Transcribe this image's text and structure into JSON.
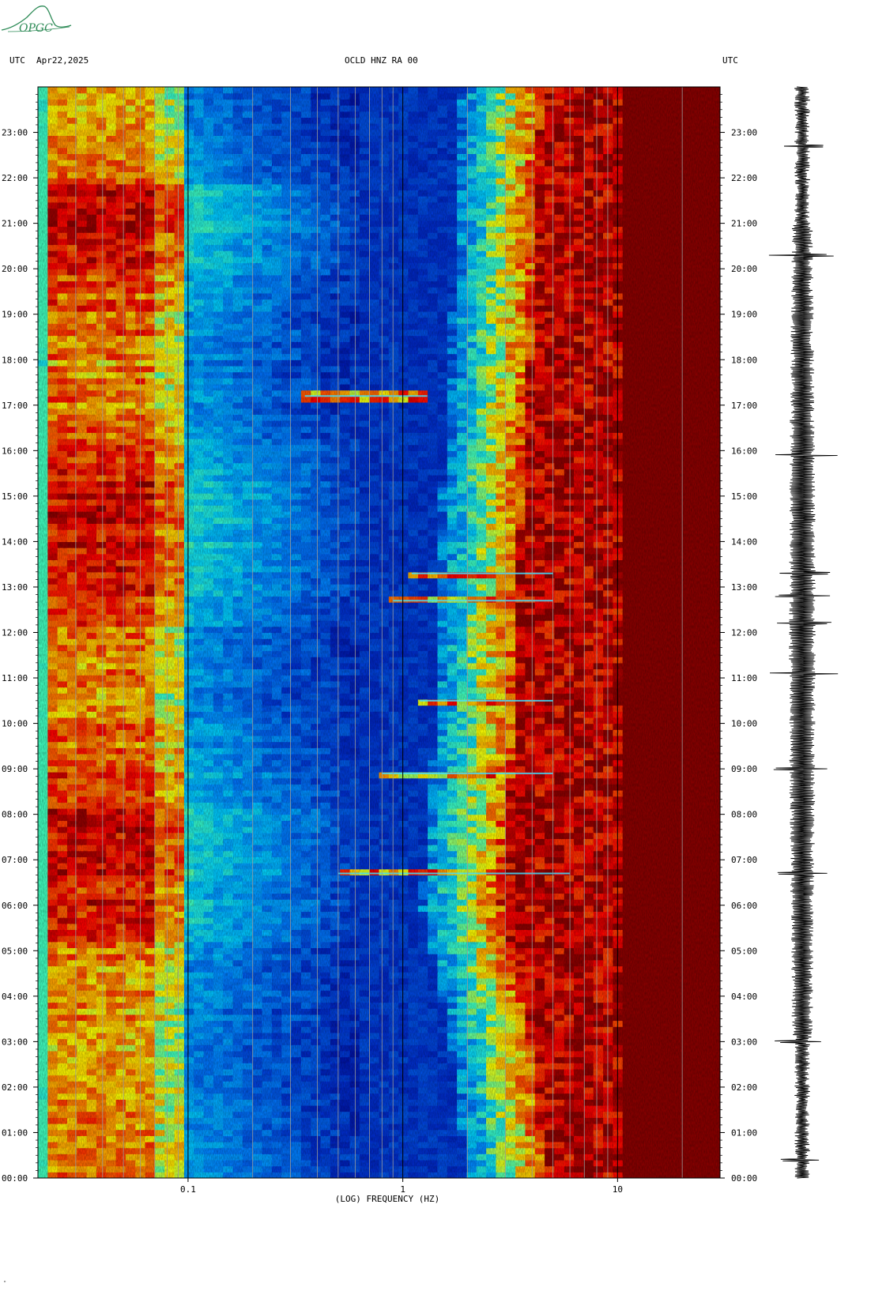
{
  "header": {
    "left_tz": "UTC",
    "date": "Apr22,2025",
    "station": "OCLD HNZ RA 00",
    "right_tz": "UTC"
  },
  "logo": {
    "text": "OPGC",
    "icon": "mountain-logo-icon",
    "color": "#2e8b57"
  },
  "footnote": "\"",
  "chart_data": {
    "type": "heatmap",
    "title": "OCLD HNZ RA 00",
    "xlabel": "(LOG) FREQUENCY (HZ)",
    "ylabel": "UTC",
    "x_scale": "log",
    "xlim": [
      0.02,
      30
    ],
    "x_ticks": [
      {
        "value": 0.1,
        "label": "0.1"
      },
      {
        "value": 1,
        "label": "1"
      },
      {
        "value": 10,
        "label": "10"
      }
    ],
    "ylim": [
      0,
      24
    ],
    "y_ticks": [
      {
        "value": 0,
        "label": "00:00"
      },
      {
        "value": 1,
        "label": "01:00"
      },
      {
        "value": 2,
        "label": "02:00"
      },
      {
        "value": 3,
        "label": "03:00"
      },
      {
        "value": 4,
        "label": "04:00"
      },
      {
        "value": 5,
        "label": "05:00"
      },
      {
        "value": 6,
        "label": "06:00"
      },
      {
        "value": 7,
        "label": "07:00"
      },
      {
        "value": 8,
        "label": "08:00"
      },
      {
        "value": 9,
        "label": "09:00"
      },
      {
        "value": 10,
        "label": "10:00"
      },
      {
        "value": 11,
        "label": "11:00"
      },
      {
        "value": 12,
        "label": "12:00"
      },
      {
        "value": 13,
        "label": "13:00"
      },
      {
        "value": 14,
        "label": "14:00"
      },
      {
        "value": 15,
        "label": "15:00"
      },
      {
        "value": 16,
        "label": "16:00"
      },
      {
        "value": 17,
        "label": "17:00"
      },
      {
        "value": 18,
        "label": "18:00"
      },
      {
        "value": 19,
        "label": "19:00"
      },
      {
        "value": 20,
        "label": "20:00"
      },
      {
        "value": 21,
        "label": "21:00"
      },
      {
        "value": 22,
        "label": "22:00"
      },
      {
        "value": 23,
        "label": "23:00"
      }
    ],
    "colormap": [
      "#00008b",
      "#0030d0",
      "#0080ff",
      "#00d0ff",
      "#40ffc0",
      "#ffff00",
      "#ff8000",
      "#ff0000",
      "#8b0000"
    ],
    "noise_edge_hz": [
      {
        "utc_hour": 0,
        "freq_hz": 2.6
      },
      {
        "utc_hour": 3,
        "freq_hz": 2.2
      },
      {
        "utc_hour": 6,
        "freq_hz": 1.6
      },
      {
        "utc_hour": 9,
        "freq_hz": 1.8
      },
      {
        "utc_hour": 12,
        "freq_hz": 1.9
      },
      {
        "utc_hour": 15,
        "freq_hz": 2.0
      },
      {
        "utc_hour": 18,
        "freq_hz": 2.2
      },
      {
        "utc_hour": 21,
        "freq_hz": 2.3
      },
      {
        "utc_hour": 24,
        "freq_hz": 2.5
      }
    ],
    "saturation_hz": 11,
    "events": [
      {
        "utc_hour": 6.7,
        "freq_min_hz": 0.5,
        "freq_max_hz": 6
      },
      {
        "utc_hour": 8.9,
        "freq_min_hz": 0.8,
        "freq_max_hz": 5
      },
      {
        "utc_hour": 10.5,
        "freq_min_hz": 1.2,
        "freq_max_hz": 5
      },
      {
        "utc_hour": 12.7,
        "freq_min_hz": 0.9,
        "freq_max_hz": 5
      },
      {
        "utc_hour": 13.3,
        "freq_min_hz": 1.1,
        "freq_max_hz": 5
      },
      {
        "utc_hour": 17.2,
        "freq_min_hz": 0.35,
        "freq_max_hz": 1.3
      }
    ],
    "waveform_spikes_utc": [
      0.4,
      3.0,
      6.7,
      9.0,
      11.1,
      12.2,
      12.8,
      13.3,
      15.9,
      20.3,
      22.7
    ]
  }
}
